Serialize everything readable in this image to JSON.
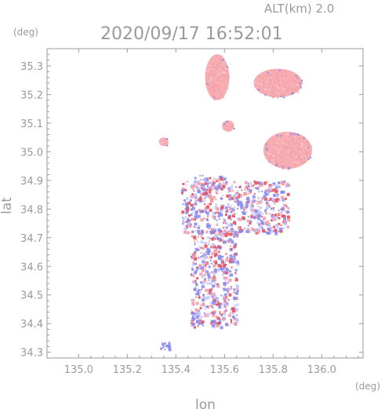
{
  "chart_data": {
    "type": "heatmap",
    "title": "2020/09/17 16:52:01",
    "subtitle": "ALT(km) 2.0",
    "xlabel": "lon",
    "ylabel": "lat",
    "x_unit": "(deg)",
    "y_unit": "(deg)",
    "xlim": [
      134.87,
      136.17
    ],
    "ylim": [
      34.28,
      35.36
    ],
    "x_ticks": [
      "135.0",
      "135.2",
      "135.4",
      "135.6",
      "135.8",
      "136.0"
    ],
    "y_ticks": [
      "34.3",
      "34.4",
      "34.5",
      "34.6",
      "34.7",
      "34.8",
      "34.9",
      "35.0",
      "35.1",
      "35.2",
      "35.3"
    ],
    "colors": {
      "positive": "#f4a0a6",
      "positive_strong": "#e8505a",
      "negative": "#8a8cf0",
      "axis": "#999999"
    },
    "regions": [
      {
        "id": "north-cluster",
        "lon_range": [
          135.52,
          135.62
        ],
        "lat_range": [
          35.18,
          35.34
        ],
        "sign": "positive"
      },
      {
        "id": "north-east-cluster",
        "lon_range": [
          135.72,
          135.92
        ],
        "lat_range": [
          35.19,
          35.29
        ],
        "sign": "positive"
      },
      {
        "id": "mid-cluster",
        "lon_range": [
          135.59,
          135.64
        ],
        "lat_range": [
          35.07,
          35.11
        ],
        "sign": "positive"
      },
      {
        "id": "east-cluster",
        "lon_range": [
          135.76,
          135.96
        ],
        "lat_range": [
          34.94,
          35.07
        ],
        "sign": "positive"
      },
      {
        "id": "west-spot",
        "lon_range": [
          135.33,
          135.37
        ],
        "lat_range": [
          35.02,
          35.05
        ],
        "sign": "positive"
      },
      {
        "id": "central-band",
        "lon_range": [
          135.46,
          135.6
        ],
        "lat_range": [
          34.87,
          34.92
        ],
        "sign": "mixed"
      },
      {
        "id": "scatter-band",
        "lon_range": [
          135.42,
          135.86
        ],
        "lat_range": [
          34.72,
          34.9
        ],
        "sign": "mixed"
      },
      {
        "id": "south-cluster",
        "lon_range": [
          135.46,
          135.65
        ],
        "lat_range": [
          34.39,
          34.73
        ],
        "sign": "mixed"
      },
      {
        "id": "sw-spot",
        "lon_range": [
          135.33,
          135.37
        ],
        "lat_range": [
          34.31,
          34.34
        ],
        "sign": "negative"
      }
    ]
  }
}
